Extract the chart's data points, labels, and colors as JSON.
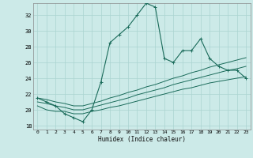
{
  "xlabel": "Humidex (Indice chaleur)",
  "background_color": "#cceae8",
  "grid_color": "#aad4d0",
  "line_color": "#1a6b5a",
  "xlim": [
    -0.5,
    23.5
  ],
  "ylim": [
    17.5,
    33.5
  ],
  "xticks": [
    0,
    1,
    2,
    3,
    4,
    5,
    6,
    7,
    8,
    9,
    10,
    11,
    12,
    13,
    14,
    15,
    16,
    17,
    18,
    19,
    20,
    21,
    22,
    23
  ],
  "yticks": [
    18,
    20,
    22,
    24,
    26,
    28,
    30,
    32
  ],
  "main_y": [
    21.5,
    21.0,
    20.5,
    19.5,
    19.0,
    18.5,
    20.0,
    23.5,
    28.5,
    29.5,
    30.5,
    32.0,
    33.5,
    33.0,
    26.5,
    26.0,
    27.5,
    27.5,
    29.0,
    26.5,
    25.5,
    25.0,
    25.0,
    24.0
  ],
  "line1_y": [
    20.5,
    20.0,
    19.8,
    19.8,
    19.5,
    19.5,
    19.8,
    20.0,
    20.3,
    20.5,
    20.8,
    21.1,
    21.4,
    21.7,
    22.0,
    22.3,
    22.6,
    22.8,
    23.1,
    23.4,
    23.6,
    23.8,
    24.0,
    24.2
  ],
  "line2_y": [
    21.0,
    20.8,
    20.5,
    20.3,
    20.0,
    20.0,
    20.3,
    20.6,
    20.9,
    21.2,
    21.5,
    21.9,
    22.2,
    22.5,
    22.8,
    23.2,
    23.5,
    23.8,
    24.1,
    24.4,
    24.7,
    25.0,
    25.2,
    25.5
  ],
  "line3_y": [
    21.5,
    21.3,
    21.0,
    20.8,
    20.5,
    20.5,
    20.8,
    21.1,
    21.5,
    21.8,
    22.2,
    22.5,
    22.9,
    23.2,
    23.6,
    24.0,
    24.3,
    24.7,
    25.0,
    25.4,
    25.7,
    26.0,
    26.3,
    26.6
  ]
}
